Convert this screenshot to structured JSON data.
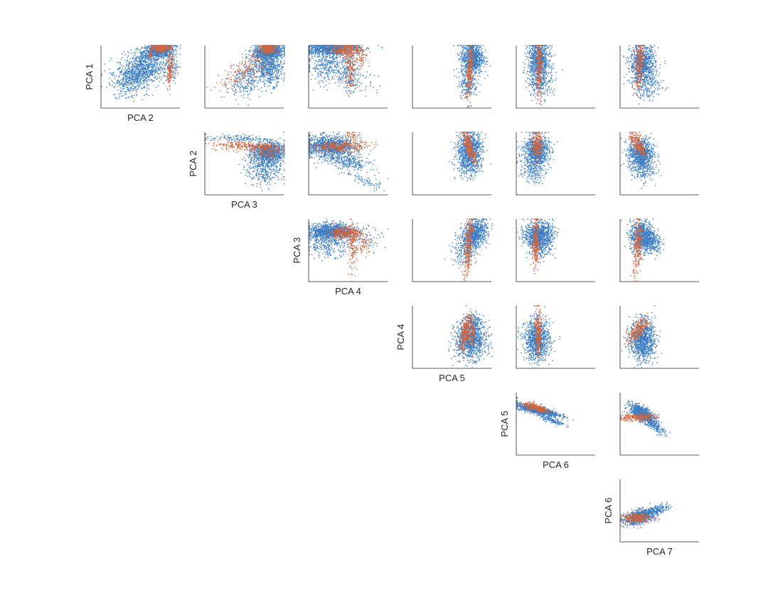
{
  "figure": {
    "background": "#ffffff",
    "colors": {
      "blue": "#3b7dc4",
      "orange": "#d4643a",
      "axis": "#262626"
    }
  },
  "chart_data": {
    "type": "scatter",
    "layout": "upper-triangular scatter matrix of principal components",
    "axis_ranges": "not printed (no tick labels shown)",
    "grid": false,
    "legend": "none",
    "components": [
      "PCA 1",
      "PCA 2",
      "PCA 3",
      "PCA 4",
      "PCA 5",
      "PCA 6",
      "PCA 7"
    ],
    "panels": [
      {
        "row": 0,
        "col": 0,
        "y": "PCA 1",
        "x": "PCA 2",
        "xlabel": "PCA 2",
        "ylabel": "PCA 1",
        "blue": [
          [
            0.72,
            0.92,
            0.1,
            0.06,
            0.3,
            900
          ],
          [
            0.52,
            0.62,
            0.16,
            0.13,
            0.2,
            800
          ],
          [
            0.38,
            0.45,
            0.12,
            0.11,
            0.4,
            250
          ],
          [
            0.9,
            0.66,
            0.03,
            0.12,
            0,
            100
          ],
          [
            0.35,
            0.25,
            0.12,
            0.08,
            0,
            40
          ]
        ],
        "orange": [
          [
            0.74,
            0.96,
            0.05,
            0.04,
            0,
            260
          ],
          [
            0.87,
            0.66,
            0.02,
            0.16,
            0.4,
            140
          ],
          [
            0.62,
            0.86,
            0.01,
            0.04,
            0,
            40
          ]
        ]
      },
      {
        "row": 0,
        "col": 1,
        "y": "PCA 1",
        "x": "PCA 3",
        "blue": [
          [
            0.8,
            0.9,
            0.1,
            0.06,
            0.2,
            900
          ],
          [
            0.82,
            0.65,
            0.08,
            0.14,
            0,
            500
          ],
          [
            0.55,
            0.55,
            0.15,
            0.16,
            0.8,
            250
          ],
          [
            0.58,
            0.35,
            0.1,
            0.1,
            0.5,
            80
          ]
        ],
        "orange": [
          [
            0.8,
            0.95,
            0.06,
            0.04,
            0,
            240
          ],
          [
            0.5,
            0.6,
            0.16,
            0.16,
            0.75,
            180
          ]
        ]
      },
      {
        "row": 0,
        "col": 2,
        "y": "PCA 1",
        "x": "PCA 4",
        "blue": [
          [
            0.28,
            0.95,
            0.18,
            0.05,
            0,
            1000
          ],
          [
            0.25,
            0.7,
            0.15,
            0.15,
            0,
            400
          ],
          [
            0.5,
            0.55,
            0.06,
            0.14,
            0,
            150
          ],
          [
            0.7,
            0.4,
            0.1,
            0.12,
            0,
            40
          ]
        ],
        "orange": [
          [
            0.48,
            0.93,
            0.1,
            0.05,
            0,
            300
          ],
          [
            0.52,
            0.6,
            0.03,
            0.2,
            0,
            140
          ],
          [
            0.65,
            0.75,
            0.04,
            0.08,
            0,
            50
          ]
        ]
      },
      {
        "row": 0,
        "col": 3,
        "y": "PCA 1",
        "x": "PCA 5",
        "blue": [
          [
            0.75,
            0.8,
            0.07,
            0.13,
            0,
            850
          ],
          [
            0.7,
            0.4,
            0.06,
            0.12,
            0,
            200
          ]
        ],
        "orange": [
          [
            0.72,
            0.6,
            0.02,
            0.22,
            0.4,
            260
          ]
        ]
      },
      {
        "row": 0,
        "col": 4,
        "y": "PCA 1",
        "x": "PCA 6",
        "blue": [
          [
            0.28,
            0.75,
            0.07,
            0.16,
            0,
            850
          ],
          [
            0.3,
            0.4,
            0.08,
            0.12,
            0,
            200
          ]
        ],
        "orange": [
          [
            0.28,
            0.65,
            0.02,
            0.25,
            0,
            240
          ]
        ]
      },
      {
        "row": 0,
        "col": 5,
        "y": "PCA 1",
        "x": "PCA 7",
        "blue": [
          [
            0.28,
            0.7,
            0.08,
            0.15,
            0,
            900
          ],
          [
            0.35,
            0.35,
            0.1,
            0.12,
            0,
            180
          ]
        ],
        "orange": [
          [
            0.24,
            0.7,
            0.03,
            0.2,
            0.3,
            240
          ]
        ]
      },
      {
        "row": 1,
        "col": 1,
        "y": "PCA 2",
        "x": "PCA 3",
        "xlabel": "PCA 3",
        "ylabel": "PCA 2",
        "blue": [
          [
            0.8,
            0.68,
            0.1,
            0.08,
            0,
            900
          ],
          [
            0.75,
            0.45,
            0.11,
            0.16,
            0,
            450
          ],
          [
            0.4,
            0.9,
            0.2,
            0.03,
            -0.15,
            120
          ]
        ],
        "orange": [
          [
            0.55,
            0.78,
            0.25,
            0.04,
            -0.18,
            260
          ],
          [
            0.78,
            0.7,
            0.08,
            0.06,
            0,
            140
          ]
        ]
      },
      {
        "row": 1,
        "col": 2,
        "y": "PCA 2",
        "x": "PCA 4",
        "blue": [
          [
            0.25,
            0.78,
            0.16,
            0.08,
            0,
            1000
          ],
          [
            0.45,
            0.55,
            0.16,
            0.1,
            -0.5,
            350
          ],
          [
            0.72,
            0.2,
            0.1,
            0.06,
            -0.6,
            60
          ]
        ],
        "orange": [
          [
            0.4,
            0.77,
            0.18,
            0.04,
            0.15,
            300
          ],
          [
            0.55,
            0.95,
            0.05,
            0.05,
            0,
            50
          ]
        ]
      },
      {
        "row": 1,
        "col": 3,
        "y": "PCA 2",
        "x": "PCA 5",
        "blue": [
          [
            0.72,
            0.72,
            0.08,
            0.14,
            0,
            850
          ],
          [
            0.7,
            0.45,
            0.08,
            0.1,
            0,
            200
          ]
        ],
        "orange": [
          [
            0.72,
            0.75,
            0.04,
            0.12,
            -0.7,
            260
          ]
        ]
      },
      {
        "row": 1,
        "col": 4,
        "y": "PCA 2",
        "x": "PCA 6",
        "blue": [
          [
            0.25,
            0.7,
            0.08,
            0.12,
            0,
            850
          ],
          [
            0.2,
            0.4,
            0.08,
            0.1,
            0,
            200
          ]
        ],
        "orange": [
          [
            0.26,
            0.8,
            0.03,
            0.12,
            0,
            220
          ]
        ]
      },
      {
        "row": 1,
        "col": 5,
        "y": "PCA 2",
        "x": "PCA 7",
        "blue": [
          [
            0.26,
            0.65,
            0.08,
            0.12,
            0,
            850
          ],
          [
            0.28,
            0.4,
            0.07,
            0.1,
            0,
            180
          ]
        ],
        "orange": [
          [
            0.22,
            0.8,
            0.05,
            0.1,
            -0.6,
            240
          ]
        ]
      },
      {
        "row": 2,
        "col": 2,
        "y": "PCA 3",
        "x": "PCA 4",
        "xlabel": "PCA 4",
        "ylabel": "PCA 3",
        "blue": [
          [
            0.28,
            0.8,
            0.14,
            0.06,
            0,
            1000
          ],
          [
            0.25,
            0.6,
            0.14,
            0.1,
            0,
            300
          ],
          [
            0.75,
            0.7,
            0.1,
            0.1,
            0,
            60
          ]
        ],
        "orange": [
          [
            0.45,
            0.78,
            0.1,
            0.05,
            0,
            300
          ],
          [
            0.55,
            0.55,
            0.03,
            0.18,
            0,
            140
          ],
          [
            0.7,
            0.6,
            0.05,
            0.08,
            0,
            60
          ]
        ]
      },
      {
        "row": 2,
        "col": 3,
        "y": "PCA 3",
        "x": "PCA 5",
        "blue": [
          [
            0.78,
            0.75,
            0.08,
            0.12,
            0.3,
            850
          ],
          [
            0.65,
            0.45,
            0.08,
            0.1,
            0,
            150
          ]
        ],
        "orange": [
          [
            0.7,
            0.55,
            0.03,
            0.25,
            0.5,
            260
          ]
        ]
      },
      {
        "row": 2,
        "col": 4,
        "y": "PCA 3",
        "x": "PCA 6",
        "blue": [
          [
            0.28,
            0.75,
            0.09,
            0.1,
            0,
            850
          ],
          [
            0.3,
            0.55,
            0.08,
            0.1,
            0,
            200
          ]
        ],
        "orange": [
          [
            0.24,
            0.6,
            0.02,
            0.22,
            0,
            240
          ]
        ]
      },
      {
        "row": 2,
        "col": 5,
        "y": "PCA 3",
        "x": "PCA 7",
        "blue": [
          [
            0.28,
            0.72,
            0.08,
            0.12,
            0,
            850
          ],
          [
            0.4,
            0.6,
            0.06,
            0.08,
            0,
            150
          ]
        ],
        "orange": [
          [
            0.22,
            0.55,
            0.03,
            0.25,
            0.35,
            260
          ]
        ]
      },
      {
        "row": 3,
        "col": 3,
        "y": "PCA 4",
        "x": "PCA 5",
        "xlabel": "PCA 5",
        "ylabel": "PCA 4",
        "blue": [
          [
            0.73,
            0.45,
            0.1,
            0.15,
            0,
            1000
          ],
          [
            0.75,
            0.7,
            0.06,
            0.1,
            0,
            200
          ]
        ],
        "orange": [
          [
            0.66,
            0.55,
            0.04,
            0.15,
            0.7,
            260
          ],
          [
            0.75,
            0.6,
            0.02,
            0.12,
            0,
            100
          ]
        ]
      },
      {
        "row": 3,
        "col": 4,
        "y": "PCA 4",
        "x": "PCA 6",
        "blue": [
          [
            0.26,
            0.45,
            0.08,
            0.16,
            0,
            1000
          ]
        ],
        "orange": [
          [
            0.27,
            0.55,
            0.02,
            0.2,
            0,
            240
          ]
        ]
      },
      {
        "row": 3,
        "col": 5,
        "y": "PCA 4",
        "x": "PCA 7",
        "blue": [
          [
            0.28,
            0.45,
            0.08,
            0.16,
            0,
            1000
          ]
        ],
        "orange": [
          [
            0.22,
            0.6,
            0.06,
            0.1,
            0.6,
            240
          ]
        ]
      },
      {
        "row": 4,
        "col": 4,
        "y": "PCA 5",
        "x": "PCA 6",
        "xlabel": "PCA 6",
        "ylabel": "PCA 5",
        "blue": [
          [
            0.25,
            0.72,
            0.14,
            0.05,
            -0.8,
            900
          ],
          [
            0.45,
            0.55,
            0.08,
            0.04,
            -0.8,
            120
          ]
        ],
        "orange": [
          [
            0.25,
            0.75,
            0.08,
            0.04,
            -0.7,
            260
          ]
        ]
      },
      {
        "row": 4,
        "col": 5,
        "y": "PCA 5",
        "x": "PCA 7",
        "blue": [
          [
            0.28,
            0.65,
            0.08,
            0.08,
            -0.7,
            800
          ],
          [
            0.45,
            0.45,
            0.06,
            0.06,
            -0.7,
            120
          ]
        ],
        "orange": [
          [
            0.2,
            0.6,
            0.12,
            0.03,
            0.1,
            260
          ]
        ]
      },
      {
        "row": 5,
        "col": 5,
        "y": "PCA 6",
        "x": "PCA 7",
        "xlabel": "PCA 7",
        "ylabel": "PCA 6",
        "blue": [
          [
            0.25,
            0.4,
            0.1,
            0.06,
            0.5,
            900
          ],
          [
            0.5,
            0.52,
            0.06,
            0.04,
            0.5,
            120
          ]
        ],
        "orange": [
          [
            0.2,
            0.38,
            0.1,
            0.04,
            0.1,
            260
          ]
        ]
      }
    ]
  }
}
